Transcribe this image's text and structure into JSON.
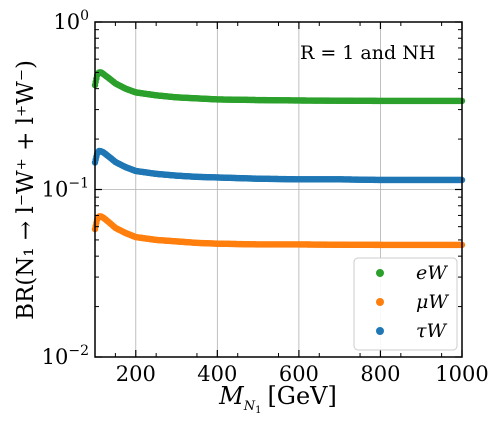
{
  "chart_data": {
    "type": "scatter",
    "xlabel": "M_{N_1} [GeV]",
    "ylabel": "BR(N_1 → l⁻W⁺ + l⁺W⁻)",
    "xlim": [
      100,
      1000
    ],
    "ylim": [
      0.01,
      1
    ],
    "yscale": "log",
    "x_ticks": [
      200,
      400,
      600,
      800,
      1000
    ],
    "y_ticks": [
      "10^-2",
      "10^-1",
      "10^0"
    ],
    "grid": true,
    "legend_position": "lower-right",
    "annotation": "R = 1 and NH",
    "series": [
      {
        "name": "eW",
        "color": "#2ca02c",
        "x": [
          100,
          105,
          110,
          115,
          120,
          130,
          140,
          150,
          175,
          200,
          250,
          300,
          350,
          400,
          500,
          600,
          700,
          800,
          900,
          1000
        ],
        "y": [
          0.42,
          0.48,
          0.5,
          0.5,
          0.49,
          0.47,
          0.45,
          0.43,
          0.4,
          0.38,
          0.365,
          0.355,
          0.35,
          0.345,
          0.342,
          0.34,
          0.339,
          0.338,
          0.338,
          0.338
        ]
      },
      {
        "name": "μW",
        "color": "#ff7f0e",
        "x": [
          100,
          105,
          110,
          115,
          120,
          130,
          140,
          150,
          175,
          200,
          250,
          300,
          350,
          400,
          500,
          600,
          700,
          800,
          900,
          1000
        ],
        "y": [
          0.058,
          0.066,
          0.069,
          0.069,
          0.068,
          0.065,
          0.062,
          0.059,
          0.055,
          0.052,
          0.05,
          0.049,
          0.048,
          0.0475,
          0.047,
          0.047,
          0.0468,
          0.0467,
          0.0467,
          0.0467
        ]
      },
      {
        "name": "τW",
        "color": "#1f77b4",
        "x": [
          100,
          105,
          110,
          115,
          120,
          130,
          140,
          150,
          175,
          200,
          250,
          300,
          350,
          400,
          500,
          600,
          700,
          800,
          900,
          1000
        ],
        "y": [
          0.145,
          0.163,
          0.17,
          0.169,
          0.167,
          0.16,
          0.153,
          0.146,
          0.136,
          0.129,
          0.124,
          0.121,
          0.119,
          0.118,
          0.116,
          0.115,
          0.115,
          0.114,
          0.114,
          0.114
        ]
      }
    ]
  },
  "labels": {
    "annotation": "R = 1 and NH",
    "xlabel_main": "M",
    "xlabel_sub": "N",
    "xlabel_subsub": "1",
    "xlabel_unit": "[GeV]",
    "ylabel": "BR(N₁ → l⁻W⁺ + l⁺W⁻)"
  }
}
